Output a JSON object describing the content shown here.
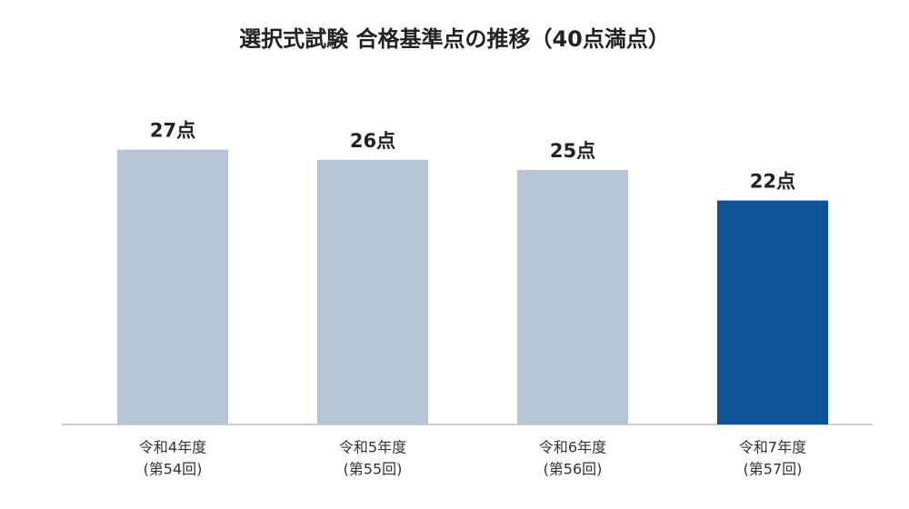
{
  "chart_data": {
    "type": "bar",
    "title": "選択式試験 合格基準点の推移（40点満点）",
    "categories": [
      [
        "令和4年度",
        "(第54回)"
      ],
      [
        "令和5年度",
        "(第55回)"
      ],
      [
        "令和6年度",
        "(第56回)"
      ],
      [
        "令和7年度",
        "(第57回)"
      ]
    ],
    "values": [
      27,
      26,
      25,
      22
    ],
    "value_labels": [
      "27点",
      "26点",
      "25点",
      "22点"
    ],
    "colors": [
      "#b8c5d6",
      "#b8c5d6",
      "#b8c5d6",
      "#0e5394"
    ],
    "ylim": [
      0,
      40
    ]
  }
}
